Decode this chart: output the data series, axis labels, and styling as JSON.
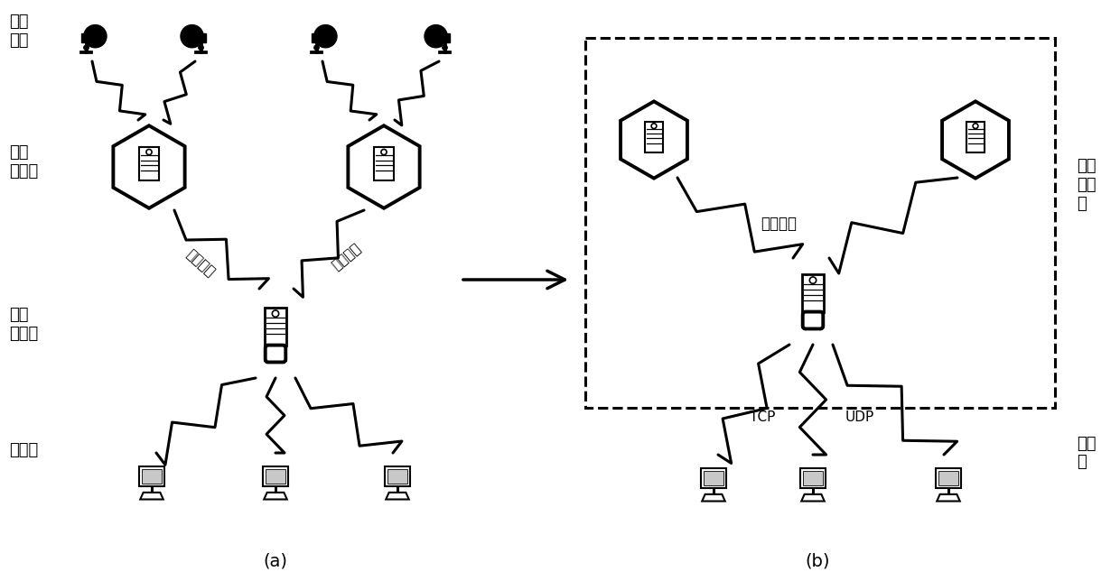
{
  "bg_color": "#ffffff",
  "label_a": "(a)",
  "label_b": "(b)",
  "label_qianduan": "前端\n设备",
  "label_shipin": "视频\n服务器",
  "label_zhuanfa_a": "转发\n服务器",
  "label_kehu_a": "客户端",
  "label_zhuanfa_b": "转发\n服务\n器",
  "label_kehu_b": "客户\n端",
  "label_shuju": "数据接入",
  "label_siyou": "私有协议",
  "label_guobiao": "国标协议",
  "label_tcp": "TCP",
  "label_udp": "UDP",
  "lw_thick": 2.8,
  "lw_med": 2.0,
  "lw_thin": 1.5,
  "lw_lightning": 2.2
}
